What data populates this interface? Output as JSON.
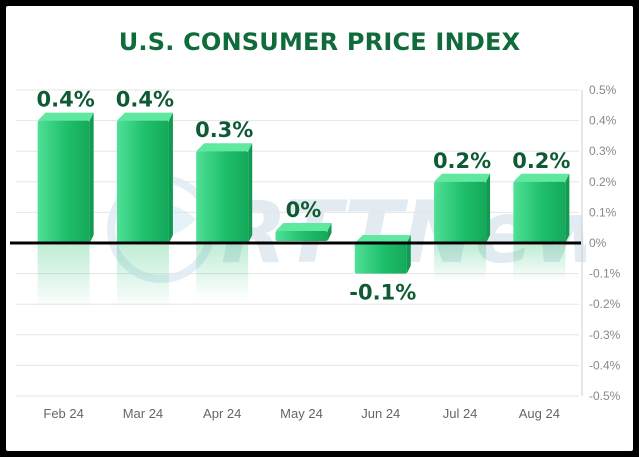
{
  "chart_data": {
    "type": "bar",
    "title": "U.S. CONSUMER PRICE INDEX",
    "categories": [
      "Feb 24",
      "Mar 24",
      "Apr 24",
      "May 24",
      "Jun 24",
      "Jul 24",
      "Aug 24"
    ],
    "values": [
      0.4,
      0.4,
      0.3,
      0,
      -0.1,
      0.2,
      0.2
    ],
    "data_labels": [
      "0.4%",
      "0.4%",
      "0.3%",
      "0%",
      "-0.1%",
      "0.2%",
      "0.2%"
    ],
    "y_ticks": [
      0.5,
      0.4,
      0.3,
      0.2,
      0.1,
      0,
      -0.1,
      -0.2,
      -0.3,
      -0.4,
      -0.5
    ],
    "y_tick_labels": [
      "0.5%",
      "0.4%",
      "0.3%",
      "0.2%",
      "0.1%",
      "0%",
      "-0.1%",
      "-0.2%",
      "-0.3%",
      "-0.4%",
      "-0.5%"
    ],
    "ylim": [
      -0.5,
      0.5
    ],
    "y_axis_side": "right",
    "grid": true,
    "xlabel": "",
    "ylabel": "",
    "colors": {
      "bar": "#1fbf6c",
      "bar_top": "#5fe8a0",
      "label": "#0f5a33",
      "title": "#0f6b3a",
      "axis": "#888888",
      "zero_line": "#000000"
    }
  },
  "watermark": {
    "text": "RTTNews"
  }
}
